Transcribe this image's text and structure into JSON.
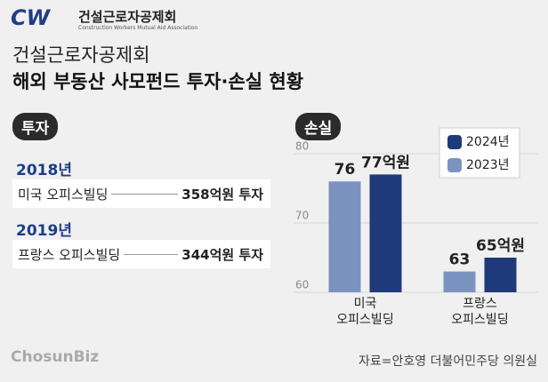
{
  "header": {
    "logo": "CW",
    "org": "건설근로자공제회",
    "org_en": "Construction Workers Mutual Aid Association",
    "title_line1": "건설근로자공제회",
    "title_line2": "해외 부동산 사모펀드 투자·손실 현황"
  },
  "investment": {
    "label": "투자",
    "items": [
      {
        "year": "2018년",
        "name": "미국 오피스빌딩",
        "amount": "358억원 투자"
      },
      {
        "year": "2019년",
        "name": "프랑스 오피스빌딩",
        "amount": "344억원 투자"
      }
    ]
  },
  "chart_data": {
    "type": "bar",
    "title": "손실",
    "categories": [
      "미국\n오피스빌딩",
      "프랑스\n오피스빌딩"
    ],
    "series": [
      {
        "name": "2024년",
        "color": "#1e3a7b",
        "values": [
          77,
          65
        ],
        "value_labels": [
          "77억원",
          "65억원"
        ]
      },
      {
        "name": "2023년",
        "color": "#7b93c0",
        "values": [
          76,
          63
        ]
      }
    ],
    "ylim": [
      60,
      80
    ],
    "yticks": [
      60,
      70,
      80
    ],
    "grid": true,
    "legend": "upper right"
  },
  "footer": {
    "brand": "ChosunBiz",
    "source": "자료=안호영 더불어민주당 의원실"
  }
}
